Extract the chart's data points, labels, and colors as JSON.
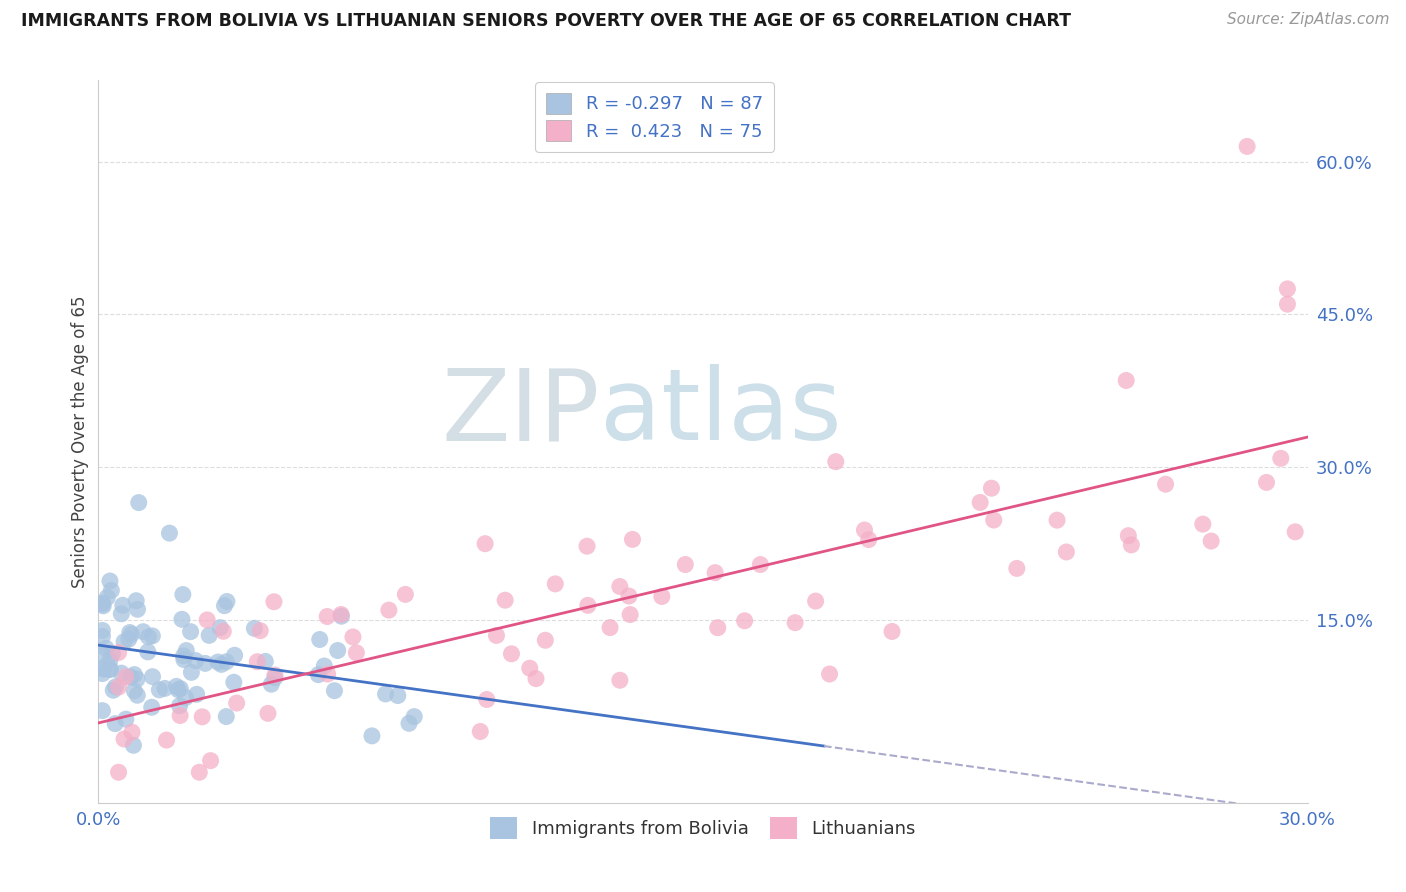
{
  "title": "IMMIGRANTS FROM BOLIVIA VS LITHUANIAN SENIORS POVERTY OVER THE AGE OF 65 CORRELATION CHART",
  "source": "Source: ZipAtlas.com",
  "ylabel": "Seniors Poverty Over the Age of 65",
  "xlim": [
    0.0,
    0.3
  ],
  "ylim": [
    -0.03,
    0.68
  ],
  "ytick_vals": [
    0.15,
    0.3,
    0.45,
    0.6
  ],
  "ytick_labels": [
    "15.0%",
    "30.0%",
    "45.0%",
    "60.0%"
  ],
  "xtick_vals": [
    0.0,
    0.3
  ],
  "xtick_labels": [
    "0.0%",
    "30.0%"
  ],
  "bolivia_R": -0.297,
  "bolivia_N": 87,
  "lithuanian_R": 0.423,
  "lithuanian_N": 75,
  "bolivia_scatter_color": "#a8c4e0",
  "lithuanian_scatter_color": "#f4b0c8",
  "bolivia_line_color": "#4472c4",
  "lithuanian_line_color": "#e05585",
  "bolivia_line_style": "solid",
  "dash_extend_color": "#aaaacc",
  "watermark_zip_color": "#c8d4e0",
  "watermark_atlas_color": "#a8c4d8",
  "legend_label_bolivia": "Immigrants from Bolivia",
  "legend_label_lithuanian": "Lithuanians",
  "tick_color": "#4472c4",
  "title_color": "#1a1a1a",
  "source_color": "#999999",
  "grid_color": "#dddddd"
}
